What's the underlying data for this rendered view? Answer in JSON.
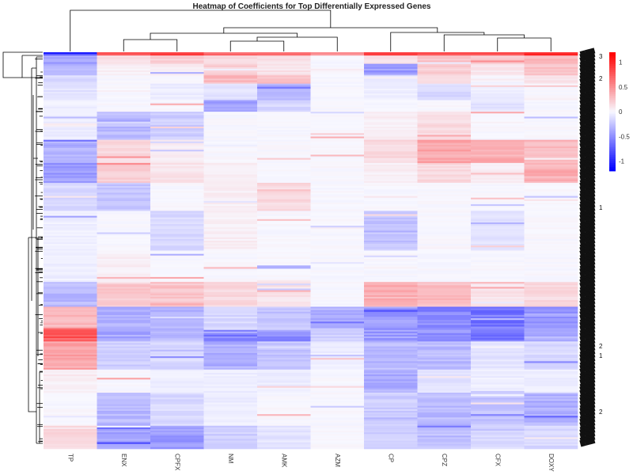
{
  "chart_data": {
    "type": "heatmap",
    "title": "Heatmap of Coefficients for Top Differentially Expressed Genes",
    "columns": [
      "TP",
      "ENX",
      "CPFX",
      "NM",
      "AMK",
      "AZM",
      "CP",
      "CPZ",
      "CFX",
      "DOXY"
    ],
    "column_order_note_free": true,
    "row_count": 240,
    "color_scale": {
      "min": -1.2,
      "max": 1.2,
      "low_color": "#0000ff",
      "mid_color": "#ffffff",
      "high_color": "#ff0000",
      "ticks": [
        1,
        0.5,
        0,
        -0.5,
        -1
      ],
      "tick_labels": [
        "1",
        "0.5",
        "0",
        "-0.5",
        "-1"
      ]
    },
    "row_label_glimpses": [
      "3",
      "2",
      "1",
      "2",
      "1",
      "2"
    ],
    "row_bands": [
      {
        "from": 0.0,
        "to": 0.008,
        "values": [
          -0.9,
          0.9,
          0.8,
          0.7,
          0.6,
          0.5,
          0.8,
          0.9,
          0.8,
          0.9
        ]
      },
      {
        "from": 0.008,
        "to": 0.03,
        "values": [
          -0.4,
          0.15,
          0.2,
          0.15,
          0.1,
          0.0,
          0.1,
          0.25,
          0.2,
          0.3
        ]
      },
      {
        "from": 0.03,
        "to": 0.06,
        "values": [
          -0.3,
          0.05,
          0.05,
          0.2,
          0.1,
          0.0,
          -0.45,
          0.2,
          0.1,
          0.25
        ]
      },
      {
        "from": 0.06,
        "to": 0.08,
        "values": [
          -0.15,
          0.0,
          0.0,
          0.3,
          0.25,
          0.0,
          -0.1,
          0.1,
          0.0,
          0.1
        ]
      },
      {
        "from": 0.08,
        "to": 0.12,
        "values": [
          -0.1,
          0.0,
          -0.05,
          -0.1,
          -0.35,
          0.0,
          -0.05,
          -0.15,
          -0.05,
          0.0
        ]
      },
      {
        "from": 0.12,
        "to": 0.15,
        "values": [
          -0.05,
          0.0,
          0.0,
          -0.4,
          -0.15,
          0.0,
          0.0,
          0.0,
          -0.1,
          0.0
        ]
      },
      {
        "from": 0.15,
        "to": 0.22,
        "values": [
          -0.05,
          -0.3,
          -0.2,
          0.0,
          0.0,
          0.0,
          0.05,
          0.15,
          0.0,
          0.0
        ]
      },
      {
        "from": 0.22,
        "to": 0.28,
        "values": [
          -0.35,
          0.15,
          0.05,
          0.0,
          0.0,
          0.0,
          0.15,
          0.4,
          0.35,
          0.3
        ]
      },
      {
        "from": 0.28,
        "to": 0.33,
        "values": [
          -0.45,
          0.2,
          0.1,
          0.05,
          0.0,
          0.0,
          0.05,
          0.15,
          0.05,
          0.35
        ]
      },
      {
        "from": 0.33,
        "to": 0.4,
        "values": [
          -0.15,
          -0.25,
          0.0,
          0.05,
          0.15,
          0.0,
          0.0,
          0.0,
          0.0,
          0.0
        ]
      },
      {
        "from": 0.4,
        "to": 0.5,
        "values": [
          -0.05,
          0.0,
          -0.15,
          0.05,
          0.0,
          0.0,
          -0.25,
          0.0,
          -0.1,
          0.0
        ]
      },
      {
        "from": 0.5,
        "to": 0.58,
        "values": [
          -0.05,
          0.05,
          0.0,
          0.0,
          0.0,
          0.0,
          0.0,
          0.0,
          0.0,
          0.0
        ]
      },
      {
        "from": 0.58,
        "to": 0.64,
        "values": [
          -0.3,
          0.25,
          0.25,
          0.15,
          0.1,
          0.0,
          0.35,
          0.3,
          0.1,
          0.15
        ]
      },
      {
        "from": 0.64,
        "to": 0.7,
        "values": [
          0.3,
          -0.35,
          -0.35,
          -0.15,
          -0.25,
          -0.35,
          -0.45,
          -0.55,
          -0.6,
          -0.45
        ]
      },
      {
        "from": 0.7,
        "to": 0.73,
        "values": [
          0.8,
          -0.4,
          -0.3,
          -0.6,
          -0.5,
          -0.2,
          -0.45,
          -0.5,
          -0.6,
          -0.35
        ]
      },
      {
        "from": 0.73,
        "to": 0.8,
        "values": [
          0.4,
          -0.2,
          -0.15,
          -0.35,
          -0.25,
          -0.05,
          -0.3,
          -0.3,
          -0.1,
          -0.15
        ]
      },
      {
        "from": 0.8,
        "to": 0.86,
        "values": [
          0.05,
          0.0,
          -0.05,
          -0.05,
          -0.05,
          0.0,
          -0.35,
          -0.1,
          -0.05,
          -0.05
        ]
      },
      {
        "from": 0.86,
        "to": 0.94,
        "values": [
          0.0,
          -0.3,
          -0.15,
          -0.05,
          0.0,
          0.0,
          -0.2,
          -0.3,
          -0.25,
          -0.35
        ]
      },
      {
        "from": 0.94,
        "to": 1.0,
        "values": [
          0.15,
          -0.4,
          -0.45,
          -0.2,
          -0.1,
          0.0,
          -0.2,
          -0.25,
          -0.15,
          -0.15
        ]
      }
    ]
  }
}
